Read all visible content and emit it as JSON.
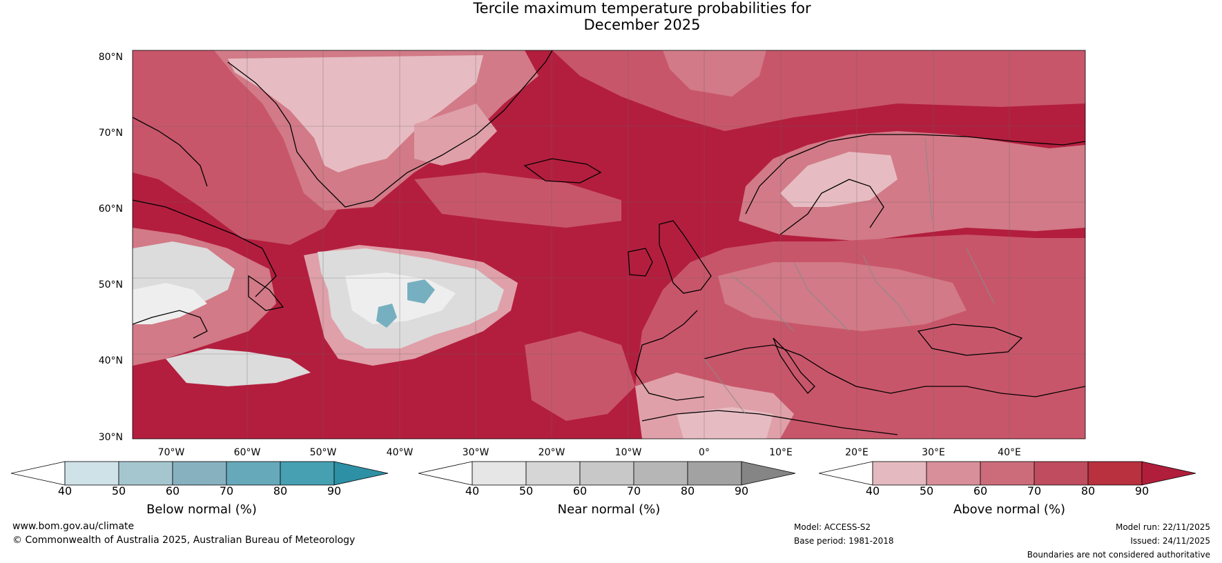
{
  "title": {
    "line1": "Tercile maximum temperature probabilities for",
    "line2": "December 2025"
  },
  "map": {
    "lat_labels": [
      "80°N",
      "70°N",
      "60°N",
      "50°N",
      "40°N",
      "30°N"
    ],
    "lon_labels": [
      "70°W",
      "60°W",
      "50°W",
      "40°W",
      "30°W",
      "20°W",
      "10°W",
      "0°",
      "10°E",
      "20°E",
      "30°E",
      "40°E"
    ],
    "colors": {
      "ocean_warm_dark": "#b31e3e",
      "warm_80": "#bb3048",
      "warm_70": "#c8566a",
      "warm_60": "#d27a87",
      "warm_50": "#dfa0a9",
      "warm_40": "#e6bcc2",
      "near_normal": "#dcdcdc",
      "near_light": "#eeeeee",
      "below_normal": "#76b0c0",
      "coast": "#000000",
      "border": "#8a8a8a"
    }
  },
  "colorbars": [
    {
      "title": "Below normal (%)",
      "ticks": [
        "40",
        "50",
        "60",
        "70",
        "80",
        "90"
      ],
      "colors": [
        "#ffffff",
        "#cfe2e8",
        "#a6c6cf",
        "#88b1c0",
        "#66a9bb",
        "#46a0b2",
        "#2d90a4"
      ]
    },
    {
      "title": "Near normal (%)",
      "ticks": [
        "40",
        "50",
        "60",
        "70",
        "80",
        "90"
      ],
      "colors": [
        "#ffffff",
        "#e6e6e6",
        "#d6d6d6",
        "#c8c8c8",
        "#b6b6b6",
        "#a2a2a2",
        "#858585"
      ]
    },
    {
      "title": "Above normal (%)",
      "ticks": [
        "40",
        "50",
        "60",
        "70",
        "80",
        "90"
      ],
      "colors": [
        "#ffffff",
        "#e4b9c0",
        "#d88f9a",
        "#cc6c7a",
        "#c04c5f",
        "#b9303f",
        "#b01e3b"
      ]
    }
  ],
  "footer": {
    "website": "www.bom.gov.au/climate",
    "copyright": "© Commonwealth of Australia 2025, Australian Bureau of Meteorology",
    "model": "Model: ACCESS-S2",
    "base_period": "Base period: 1981-2018",
    "model_run": "Model run: 22/11/2025",
    "issued": "Issued: 24/11/2025",
    "disclaimer": "Boundaries are not considered authoritative"
  }
}
